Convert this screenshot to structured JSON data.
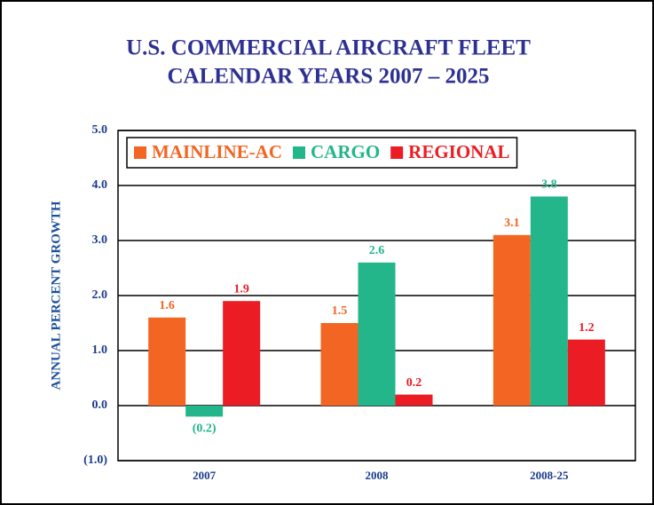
{
  "chart_data": {
    "type": "bar",
    "title": "U.S. COMMERCIAL AIRCRAFT FLEET",
    "subtitle": "CALENDAR YEARS 2007 – 2025",
    "y_label": "ANNUAL PERCENT GROWTH",
    "categories": [
      "2007",
      "2008",
      "2008-25"
    ],
    "series": [
      {
        "name": "MAINLINE-AC",
        "color": "#f26522",
        "values": [
          1.6,
          1.5,
          3.1
        ],
        "value_labels": [
          "1.6",
          "1.5",
          "3.1"
        ]
      },
      {
        "name": "CARGO",
        "color": "#22b68a",
        "values": [
          -0.2,
          2.6,
          3.8
        ],
        "value_labels": [
          "(0.2)",
          "2.6",
          "3.8"
        ]
      },
      {
        "name": "REGIONAL",
        "color": "#ec1c24",
        "values": [
          1.9,
          0.2,
          1.2
        ],
        "value_labels": [
          "1.9",
          "0.2",
          "1.2"
        ]
      }
    ],
    "ylim": [
      -1,
      5
    ],
    "yticks": [
      {
        "value": -1,
        "label": "(1.0)"
      },
      {
        "value": 0,
        "label": "0.0"
      },
      {
        "value": 1,
        "label": "1.0"
      },
      {
        "value": 2,
        "label": "2.0"
      },
      {
        "value": 3,
        "label": "3.0"
      },
      {
        "value": 4,
        "label": "4.0"
      },
      {
        "value": 5,
        "label": "5.0"
      }
    ],
    "grid": true,
    "legend": "top-left"
  }
}
